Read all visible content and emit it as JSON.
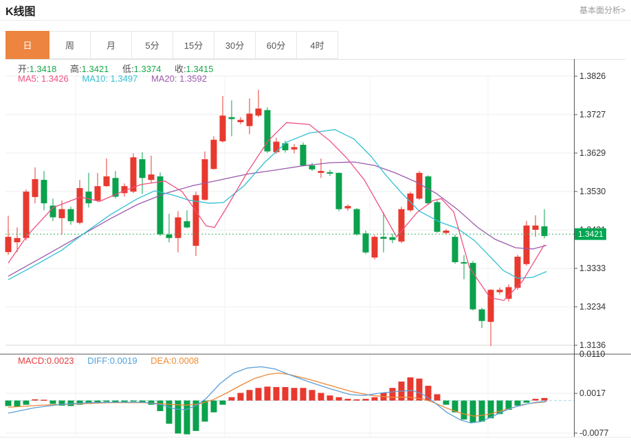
{
  "header": {
    "title": "K线图",
    "link": "基本面分析>"
  },
  "tabs": {
    "items": [
      "日",
      "周",
      "月",
      "5分",
      "15分",
      "30分",
      "60分",
      "4时"
    ],
    "selected_index": 0
  },
  "ohlc": {
    "open_label": "开:",
    "open_value": "1.3418",
    "high_label": "高:",
    "high_value": "1.3421",
    "low_label": "低:",
    "low_value": "1.3374",
    "close_label": "收:",
    "close_value": "1.3415"
  },
  "ma": {
    "ma5_label": "MA5:",
    "ma5_value": "1.3426",
    "ma10_label": "MA10:",
    "ma10_value": "1.3497",
    "ma20_label": "MA20:",
    "ma20_value": "1.3592"
  },
  "macd": {
    "macd_label": "MACD:",
    "macd_value": "0.0023",
    "diff_label": "DIFF:",
    "diff_value": "0.0019",
    "dea_label": "DEA:",
    "dea_value": "0.0008"
  },
  "current_price": {
    "value": "1.3421"
  },
  "colors": {
    "up": "#e8392f",
    "down": "#0ba14d",
    "ma5": "#ef4f7f",
    "ma10": "#2ec0d2",
    "ma20": "#9b59ab",
    "diff": "#5b9fd8",
    "dea": "#ee8633",
    "price_tag": "#00a651",
    "price_line": "#2eb05c",
    "tab_accent": "#ed8440",
    "grid": "#ededed",
    "axis": "#555555",
    "tick_text": "#333333"
  },
  "chart_data": {
    "type": "candlestick",
    "title": "K线图",
    "legend": [
      "MA5",
      "MA10",
      "MA20",
      "MACD",
      "DIFF",
      "DEA"
    ],
    "price_axis": {
      "min": 1.3136,
      "max": 1.3826,
      "ticks": [
        "1.3826",
        "1.3727",
        "1.3629",
        "1.3530",
        "1.3431",
        "1.3333",
        "1.3234",
        "1.3136"
      ]
    },
    "macd_axis": {
      "ticks": [
        "0.0110",
        "0.0017",
        "-0.0077"
      ],
      "tick_values": [
        0.011,
        0.0017,
        -0.0077
      ]
    },
    "current_price": 1.3421,
    "candles": [
      [
        1.3375,
        1.3468,
        1.3368,
        1.3414
      ],
      [
        1.34,
        1.3438,
        1.3375,
        1.3411
      ],
      [
        1.3411,
        1.3535,
        1.3405,
        1.353
      ],
      [
        1.3516,
        1.3592,
        1.35,
        1.3562
      ],
      [
        1.356,
        1.3583,
        1.3482,
        1.35
      ],
      [
        1.3494,
        1.3512,
        1.3454,
        1.3464
      ],
      [
        1.3462,
        1.3507,
        1.342,
        1.3485
      ],
      [
        1.3485,
        1.3491,
        1.3445,
        1.3454
      ],
      [
        1.345,
        1.356,
        1.3446,
        1.3539
      ],
      [
        1.353,
        1.3578,
        1.3489,
        1.35
      ],
      [
        1.3507,
        1.3578,
        1.3503,
        1.3544
      ],
      [
        1.3544,
        1.3615,
        1.3542,
        1.3569
      ],
      [
        1.3565,
        1.3583,
        1.3512,
        1.3517
      ],
      [
        1.3526,
        1.3551,
        1.3517,
        1.3544
      ],
      [
        1.353,
        1.3628,
        1.3526,
        1.3618
      ],
      [
        1.3613,
        1.3631,
        1.3524,
        1.3565
      ],
      [
        1.356,
        1.3622,
        1.3553,
        1.3574
      ],
      [
        1.3569,
        1.3579,
        1.3416,
        1.342
      ],
      [
        1.342,
        1.3473,
        1.34,
        1.3411
      ],
      [
        1.3411,
        1.348,
        1.3374,
        1.3464
      ],
      [
        1.3454,
        1.3482,
        1.3436,
        1.3438
      ],
      [
        1.3391,
        1.353,
        1.3365,
        1.3521
      ],
      [
        1.3509,
        1.3633,
        1.3507,
        1.3613
      ],
      [
        1.3588,
        1.3672,
        1.3586,
        1.3663
      ],
      [
        1.3659,
        1.3775,
        1.3656,
        1.3725
      ],
      [
        1.3721,
        1.3764,
        1.3672,
        1.3716
      ],
      [
        1.3708,
        1.3721,
        1.3703,
        1.3714
      ],
      [
        1.3698,
        1.3769,
        1.3677,
        1.373
      ],
      [
        1.3725,
        1.3791,
        1.3721,
        1.3743
      ],
      [
        1.3739,
        1.3746,
        1.3629,
        1.3633
      ],
      [
        1.3631,
        1.3668,
        1.3627,
        1.3658
      ],
      [
        1.3654,
        1.366,
        1.363,
        1.3636
      ],
      [
        1.3638,
        1.3652,
        1.3628,
        1.3644
      ],
      [
        1.365,
        1.3656,
        1.3595,
        1.3597
      ],
      [
        1.3597,
        1.3604,
        1.3583,
        1.3587
      ],
      [
        1.3578,
        1.3615,
        1.3565,
        1.3583
      ],
      [
        1.358,
        1.3586,
        1.357,
        1.3576
      ],
      [
        1.3578,
        1.3579,
        1.348,
        1.3485
      ],
      [
        1.3487,
        1.3497,
        1.3481,
        1.3493
      ],
      [
        1.3485,
        1.3488,
        1.3417,
        1.342
      ],
      [
        1.3423,
        1.343,
        1.337,
        1.3374
      ],
      [
        1.3361,
        1.3418,
        1.3356,
        1.3414
      ],
      [
        1.3414,
        1.3477,
        1.3374,
        1.3409
      ],
      [
        1.3413,
        1.3422,
        1.3398,
        1.3406
      ],
      [
        1.3402,
        1.3491,
        1.3398,
        1.3485
      ],
      [
        1.3482,
        1.353,
        1.3478,
        1.3525
      ],
      [
        1.3512,
        1.3583,
        1.3509,
        1.3578
      ],
      [
        1.3569,
        1.3572,
        1.3496,
        1.35
      ],
      [
        1.3503,
        1.3508,
        1.3424,
        1.3427
      ],
      [
        1.3424,
        1.3434,
        1.342,
        1.343
      ],
      [
        1.3414,
        1.342,
        1.3345,
        1.3349
      ],
      [
        1.3349,
        1.3367,
        1.3305,
        1.3346
      ],
      [
        1.3347,
        1.3352,
        1.3225,
        1.3228
      ],
      [
        1.3228,
        1.3232,
        1.318,
        1.3198
      ],
      [
        1.3196,
        1.328,
        1.3134,
        1.3278
      ],
      [
        1.3272,
        1.3284,
        1.3266,
        1.3278
      ],
      [
        1.3255,
        1.3292,
        1.3248,
        1.3285
      ],
      [
        1.3283,
        1.3368,
        1.3278,
        1.3363
      ],
      [
        1.3344,
        1.3455,
        1.334,
        1.3443
      ],
      [
        1.3432,
        1.3469,
        1.3414,
        1.3443
      ],
      [
        1.3441,
        1.3485,
        1.341,
        1.3416
      ]
    ],
    "ma5": [
      [
        12,
        1.3347
      ],
      [
        40,
        1.3418
      ],
      [
        77,
        1.3489
      ],
      [
        117,
        1.3516
      ],
      [
        145,
        1.3505
      ],
      [
        175,
        1.3528
      ],
      [
        205,
        1.3548
      ],
      [
        240,
        1.3557
      ],
      [
        265,
        1.353
      ],
      [
        285,
        1.348
      ],
      [
        300,
        1.3442
      ],
      [
        312,
        1.3438
      ],
      [
        330,
        1.349
      ],
      [
        360,
        1.358
      ],
      [
        390,
        1.366
      ],
      [
        417,
        1.3707
      ],
      [
        450,
        1.3702
      ],
      [
        480,
        1.366
      ],
      [
        505,
        1.3615
      ],
      [
        530,
        1.356
      ],
      [
        553,
        1.3489
      ],
      [
        577,
        1.3414
      ],
      [
        607,
        1.3477
      ],
      [
        630,
        1.3507
      ],
      [
        642,
        1.3512
      ],
      [
        660,
        1.3478
      ],
      [
        683,
        1.3335
      ],
      [
        713,
        1.3258
      ],
      [
        733,
        1.3251
      ],
      [
        760,
        1.33
      ],
      [
        792,
        1.3394
      ]
    ],
    "ma10": [
      [
        12,
        1.3304
      ],
      [
        50,
        1.334
      ],
      [
        90,
        1.338
      ],
      [
        120,
        1.342
      ],
      [
        160,
        1.347
      ],
      [
        200,
        1.3512
      ],
      [
        225,
        1.3532
      ],
      [
        250,
        1.3522
      ],
      [
        275,
        1.3508
      ],
      [
        305,
        1.35
      ],
      [
        325,
        1.3502
      ],
      [
        355,
        1.3545
      ],
      [
        385,
        1.3605
      ],
      [
        417,
        1.3657
      ],
      [
        450,
        1.368
      ],
      [
        487,
        1.3689
      ],
      [
        515,
        1.3665
      ],
      [
        540,
        1.362
      ],
      [
        560,
        1.3575
      ],
      [
        585,
        1.3525
      ],
      [
        610,
        1.348
      ],
      [
        640,
        1.3452
      ],
      [
        665,
        1.3436
      ],
      [
        690,
        1.3405
      ],
      [
        712,
        1.3365
      ],
      [
        732,
        1.3328
      ],
      [
        753,
        1.3308
      ],
      [
        775,
        1.331
      ],
      [
        795,
        1.3325
      ]
    ],
    "ma20": [
      [
        12,
        1.3313
      ],
      [
        60,
        1.336
      ],
      [
        120,
        1.342
      ],
      [
        160,
        1.346
      ],
      [
        200,
        1.3497
      ],
      [
        240,
        1.3525
      ],
      [
        280,
        1.3545
      ],
      [
        320,
        1.356
      ],
      [
        360,
        1.3575
      ],
      [
        400,
        1.3585
      ],
      [
        440,
        1.3596
      ],
      [
        480,
        1.3604
      ],
      [
        515,
        1.3606
      ],
      [
        545,
        1.3597
      ],
      [
        575,
        1.3578
      ],
      [
        605,
        1.3555
      ],
      [
        635,
        1.3525
      ],
      [
        665,
        1.3485
      ],
      [
        695,
        1.3438
      ],
      [
        720,
        1.3408
      ],
      [
        750,
        1.3386
      ],
      [
        775,
        1.3383
      ],
      [
        795,
        1.3392
      ]
    ],
    "macd_hist": [
      -0.0013,
      -0.0015,
      -0.001,
      0.0003,
      0.0002,
      -0.0008,
      -0.0012,
      -0.0013,
      -0.001,
      -0.0008,
      -0.0005,
      -0.0003,
      -0.0004,
      -0.0003,
      -0.0002,
      -0.0004,
      -0.001,
      -0.0025,
      -0.0055,
      -0.0078,
      -0.008,
      -0.0072,
      -0.005,
      -0.0028,
      -0.001,
      0.0008,
      0.0018,
      0.0025,
      0.003,
      0.0033,
      0.0032,
      0.0032,
      0.003,
      0.003,
      0.0025,
      0.0018,
      0.0012,
      0.0008,
      0.0004,
      0.0003,
      0.0004,
      0.0008,
      0.0018,
      0.003,
      0.0045,
      0.0055,
      0.0052,
      0.0035,
      0.0015,
      -0.001,
      -0.0028,
      -0.0045,
      -0.0052,
      -0.005,
      -0.0042,
      -0.0032,
      -0.0022,
      -0.0012,
      -0.0005,
      0.0004,
      0.0006
    ],
    "diff": [
      [
        12,
        -0.003
      ],
      [
        50,
        -0.0017
      ],
      [
        90,
        -0.0009
      ],
      [
        130,
        -0.0005
      ],
      [
        170,
        -0.0004
      ],
      [
        210,
        -0.0004
      ],
      [
        235,
        -0.001
      ],
      [
        255,
        -0.002
      ],
      [
        270,
        -0.0022
      ],
      [
        285,
        -0.0012
      ],
      [
        300,
        0.0005
      ],
      [
        320,
        0.004
      ],
      [
        340,
        0.0065
      ],
      [
        360,
        0.0077
      ],
      [
        380,
        0.008
      ],
      [
        400,
        0.0075
      ],
      [
        420,
        0.0062
      ],
      [
        450,
        0.0044
      ],
      [
        480,
        0.0028
      ],
      [
        510,
        0.0014
      ],
      [
        530,
        0.0012
      ],
      [
        555,
        0.0018
      ],
      [
        580,
        0.0022
      ],
      [
        600,
        0.0024
      ],
      [
        615,
        0.0015
      ],
      [
        630,
        -0.0002
      ],
      [
        650,
        -0.0028
      ],
      [
        670,
        -0.0046
      ],
      [
        685,
        -0.0053
      ],
      [
        700,
        -0.005
      ],
      [
        720,
        -0.0035
      ],
      [
        740,
        -0.002
      ],
      [
        760,
        -0.001
      ],
      [
        780,
        -0.0004
      ],
      [
        795,
        -0.0002
      ]
    ],
    "dea": [
      [
        12,
        -0.0016
      ],
      [
        60,
        -0.0011
      ],
      [
        110,
        -0.0008
      ],
      [
        160,
        -0.0005
      ],
      [
        210,
        -0.0005
      ],
      [
        245,
        -0.0009
      ],
      [
        270,
        -0.0011
      ],
      [
        290,
        -0.0008
      ],
      [
        310,
        0.0002
      ],
      [
        330,
        0.0018
      ],
      [
        350,
        0.0036
      ],
      [
        370,
        0.0052
      ],
      [
        390,
        0.0062
      ],
      [
        405,
        0.0065
      ],
      [
        420,
        0.0062
      ],
      [
        450,
        0.005
      ],
      [
        480,
        0.0036
      ],
      [
        510,
        0.0022
      ],
      [
        540,
        0.0012
      ],
      [
        570,
        0.0008
      ],
      [
        595,
        0.0008
      ],
      [
        615,
        0.0004
      ],
      [
        630,
        -0.0004
      ],
      [
        650,
        -0.0018
      ],
      [
        670,
        -0.003
      ],
      [
        690,
        -0.0037
      ],
      [
        710,
        -0.0033
      ],
      [
        730,
        -0.0024
      ],
      [
        750,
        -0.0015
      ],
      [
        770,
        -0.0007
      ],
      [
        795,
        -0.0003
      ]
    ]
  }
}
